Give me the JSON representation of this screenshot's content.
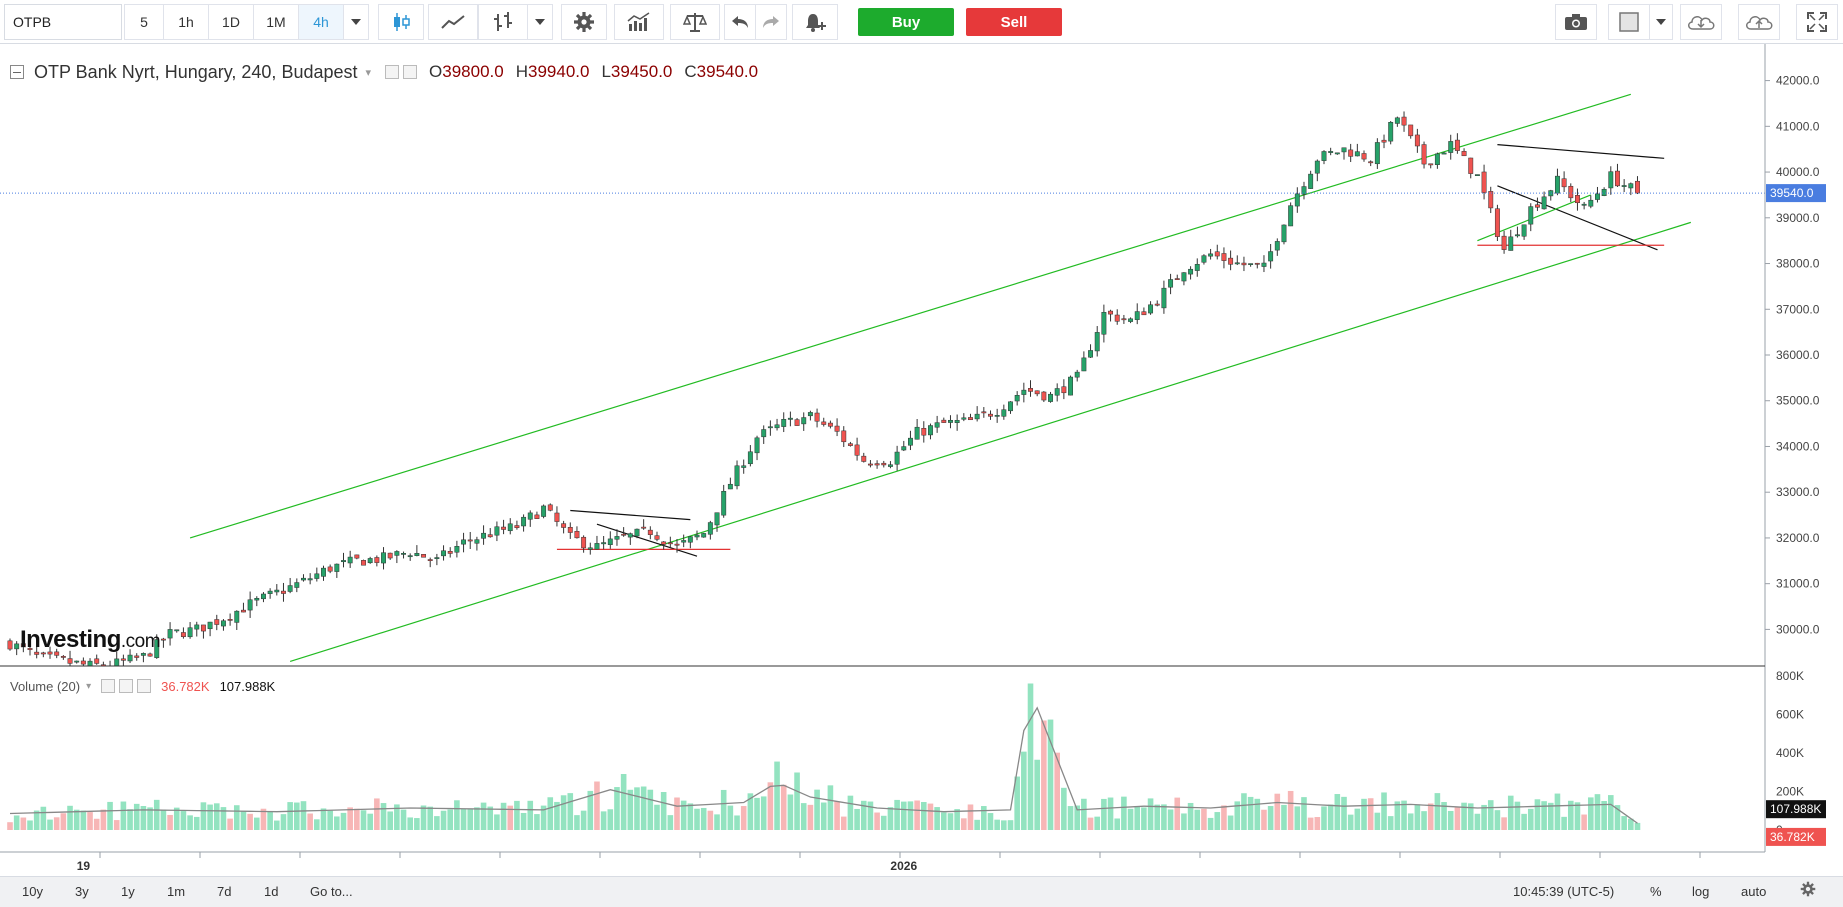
{
  "toolbar": {
    "symbol": "OTPB",
    "intervals": [
      "5",
      "1h",
      "1D",
      "1M",
      "4h"
    ],
    "active_interval": "4h",
    "buy_label": "Buy",
    "sell_label": "Sell"
  },
  "legend": {
    "title": "OTP Bank Nyrt, Hungary, 240, Budapest",
    "o_label": "O",
    "o_value": "39800.0",
    "h_label": "H",
    "h_value": "39940.0",
    "l_label": "L",
    "l_value": "39450.0",
    "c_label": "C",
    "c_value": "39540.0"
  },
  "volume_legend": {
    "title": "Volume (20)",
    "value_current": "36.782K",
    "value_ma": "107.988K"
  },
  "watermark": {
    "brand": "Investing",
    "suffix": ".com"
  },
  "bottom_bar": {
    "ranges": [
      "10y",
      "3y",
      "1y",
      "1m",
      "7d",
      "1d"
    ],
    "goto": "Go to...",
    "time": "10:45:39 (UTC-5)",
    "percent": "%",
    "log": "log",
    "auto": "auto"
  },
  "colors": {
    "up": "#26a269",
    "down": "#ef5350",
    "vol_up": "#93e3c0",
    "vol_down": "#f7b6b6",
    "channel": "#22bb22",
    "support": "#e33333",
    "price_line": "#4a7de0"
  },
  "chart_data": {
    "type": "candlestick",
    "symbol": "OTPB",
    "title": "OTP Bank Nyrt, Hungary, 240, Budapest",
    "last_price": "39540.0",
    "price_axis_ticks": [
      "42000.0",
      "41000.0",
      "40000.0",
      "39000.0",
      "38000.0",
      "37000.0",
      "36000.0",
      "35000.0",
      "34000.0",
      "33000.0",
      "32000.0",
      "31000.0",
      "30000.0"
    ],
    "ylim": [
      29200,
      42800
    ],
    "x_labels": [
      "19",
      "2026"
    ],
    "volume_axis_ticks": [
      "800K",
      "600K",
      "400K",
      "200K",
      "0"
    ],
    "volume_ylim": [
      0,
      830000
    ],
    "volume_ma_label": "107.988K",
    "volume_last_label": "36.782K",
    "close_path": [
      [
        0,
        29700
      ],
      [
        4,
        29400
      ],
      [
        8,
        29300
      ],
      [
        12,
        29200
      ],
      [
        16,
        29250
      ],
      [
        20,
        29400
      ],
      [
        24,
        29900
      ],
      [
        28,
        30000
      ],
      [
        32,
        30250
      ],
      [
        36,
        30550
      ],
      [
        40,
        30800
      ],
      [
        44,
        31050
      ],
      [
        48,
        31350
      ],
      [
        52,
        31500
      ],
      [
        56,
        31550
      ],
      [
        60,
        31700
      ],
      [
        64,
        31500
      ],
      [
        68,
        31900
      ],
      [
        72,
        32100
      ],
      [
        76,
        32250
      ],
      [
        80,
        32650
      ],
      [
        84,
        32000
      ],
      [
        88,
        31800
      ],
      [
        92,
        32000
      ],
      [
        96,
        32150
      ],
      [
        100,
        31800
      ],
      [
        104,
        32100
      ],
      [
        108,
        33200
      ],
      [
        112,
        34200
      ],
      [
        116,
        34500
      ],
      [
        120,
        34650
      ],
      [
        124,
        34300
      ],
      [
        128,
        33700
      ],
      [
        132,
        33700
      ],
      [
        136,
        34300
      ],
      [
        140,
        34500
      ],
      [
        144,
        34550
      ],
      [
        148,
        34800
      ],
      [
        152,
        35250
      ],
      [
        156,
        35100
      ],
      [
        160,
        35500
      ],
      [
        164,
        36900
      ],
      [
        168,
        36750
      ],
      [
        172,
        37200
      ],
      [
        176,
        37900
      ],
      [
        180,
        38200
      ],
      [
        184,
        38000
      ],
      [
        188,
        37900
      ],
      [
        192,
        39300
      ],
      [
        196,
        40300
      ],
      [
        200,
        40500
      ],
      [
        204,
        40300
      ],
      [
        208,
        41200
      ],
      [
        212,
        40200
      ],
      [
        216,
        40600
      ],
      [
        220,
        39900
      ],
      [
        224,
        38300
      ],
      [
        228,
        39200
      ],
      [
        232,
        39800
      ],
      [
        236,
        39200
      ],
      [
        240,
        39900
      ],
      [
        244,
        39540
      ]
    ],
    "volume_path": [
      [
        0,
        90000
      ],
      [
        20,
        110000
      ],
      [
        40,
        100000
      ],
      [
        60,
        120000
      ],
      [
        80,
        110000
      ],
      [
        90,
        220000
      ],
      [
        100,
        130000
      ],
      [
        110,
        150000
      ],
      [
        115,
        260000
      ],
      [
        120,
        180000
      ],
      [
        130,
        120000
      ],
      [
        140,
        100000
      ],
      [
        150,
        110000
      ],
      [
        153,
        760000
      ],
      [
        160,
        110000
      ],
      [
        170,
        130000
      ],
      [
        180,
        120000
      ],
      [
        190,
        150000
      ],
      [
        200,
        130000
      ],
      [
        210,
        140000
      ],
      [
        220,
        120000
      ],
      [
        230,
        130000
      ],
      [
        240,
        140000
      ],
      [
        244,
        36782
      ]
    ],
    "trendlines": [
      {
        "kind": "channel-upper",
        "from": [
          27,
          32000
        ],
        "to": [
          243,
          41700
        ]
      },
      {
        "kind": "channel-lower",
        "from": [
          42,
          29300
        ],
        "to": [
          252,
          38900
        ]
      },
      {
        "kind": "pattern-top",
        "from": [
          84,
          32600
        ],
        "to": [
          102,
          32400
        ]
      },
      {
        "kind": "pattern-bottom",
        "from": [
          88,
          32300
        ],
        "to": [
          103,
          31600
        ]
      },
      {
        "kind": "support",
        "from": [
          82,
          31750
        ],
        "to": [
          108,
          31750
        ]
      },
      {
        "kind": "pattern-top",
        "from": [
          223,
          40600
        ],
        "to": [
          248,
          40300
        ]
      },
      {
        "kind": "pattern-bottom",
        "from": [
          223,
          39700
        ],
        "to": [
          247,
          38300
        ]
      },
      {
        "kind": "flag-bottom",
        "from": [
          220,
          38500
        ],
        "to": [
          237,
          39500
        ]
      },
      {
        "kind": "support",
        "from": [
          220,
          38400
        ],
        "to": [
          248,
          38400
        ]
      }
    ]
  }
}
